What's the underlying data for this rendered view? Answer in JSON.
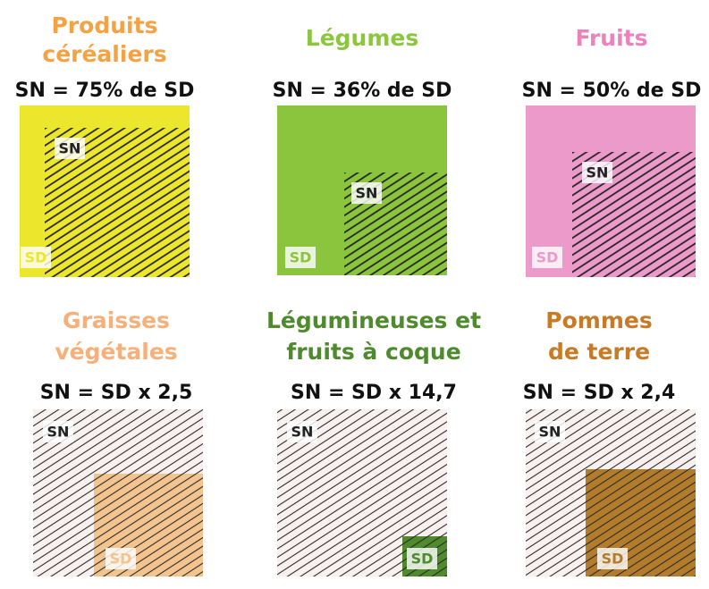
{
  "panels": [
    {
      "title": [
        "Produits",
        "céréaliers"
      ],
      "formula": "SN = 75% de SD",
      "sn_label": "SN",
      "sd_label": "SD",
      "title_color": "#f5a243",
      "fill_color": "#ece62c"
    },
    {
      "title": [
        "Légumes"
      ],
      "formula": "SN = 36% de SD",
      "sn_label": "SN",
      "sd_label": "SD",
      "title_color": "#8cc63f",
      "fill_color": "#8bc43d"
    },
    {
      "title": [
        "Fruits"
      ],
      "formula": "SN = 50% de SD",
      "sn_label": "SN",
      "sd_label": "SD",
      "title_color": "#ec82bb",
      "fill_color": "#eb9ac9"
    },
    {
      "title": [
        "Graisses",
        "végétales"
      ],
      "formula": "SN = SD x 2,5",
      "sn_label": "SN",
      "sd_label": "SD",
      "title_color": "#f7b07a",
      "fill_color": "#f3c48e"
    },
    {
      "title": [
        "Légumineuses et",
        "fruits à coque"
      ],
      "formula": "SN = SD x 14,7",
      "sn_label": "SN",
      "sd_label": "SD",
      "title_color": "#4f8a2e",
      "fill_color": "#4f8a2c"
    },
    {
      "title": [
        "Pommes",
        "de terre"
      ],
      "formula": "SN = SD x 2,4",
      "sn_label": "SN",
      "sd_label": "SD",
      "title_color": "#c97a24",
      "fill_color": "#b37c2b"
    }
  ]
}
